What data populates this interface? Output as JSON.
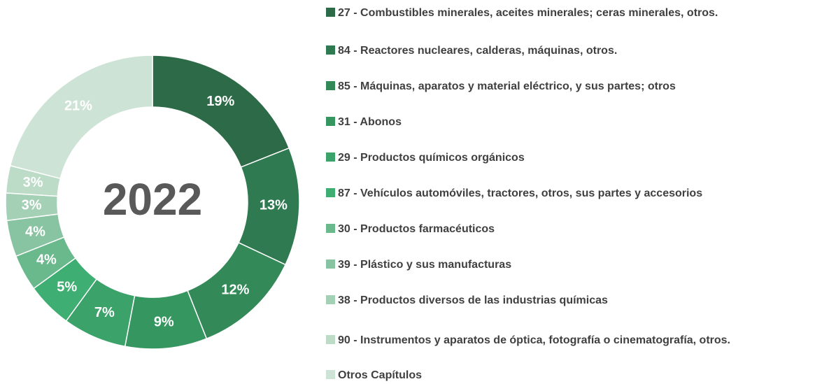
{
  "chart_data": {
    "type": "donut",
    "center_label": "2022",
    "categories": [
      "27 - Combustibles minerales, aceites minerales; ceras minerales, otros.",
      "84 - Reactores nucleares, calderas, máquinas, otros.",
      "85 - Máquinas, aparatos y material eléctrico, y sus partes; otros",
      "31 - Abonos",
      "29 - Productos químicos orgánicos",
      "87 - Vehículos automóviles, tractores, otros, sus partes y accesorios",
      "30 - Productos farmacéuticos",
      "39 - Plástico y sus manufacturas",
      "38 - Productos diversos de las industrias químicas",
      "90 - Instrumentos y aparatos de óptica, fotografía o cinematografía, otros.",
      "Otros Capítulos"
    ],
    "values": [
      19,
      13,
      12,
      9,
      7,
      5,
      4,
      4,
      3,
      3,
      21
    ],
    "value_labels": [
      "19%",
      "13%",
      "12%",
      "9%",
      "7%",
      "5%",
      "4%",
      "4%",
      "3%",
      "3%",
      "21%"
    ],
    "colors": [
      "#2d6b48",
      "#2f7a50",
      "#338a58",
      "#369660",
      "#3ba36a",
      "#3fae72",
      "#6ab98c",
      "#88c4a1",
      "#a4d1b5",
      "#bcdcc7",
      "#cde3d5"
    ]
  }
}
